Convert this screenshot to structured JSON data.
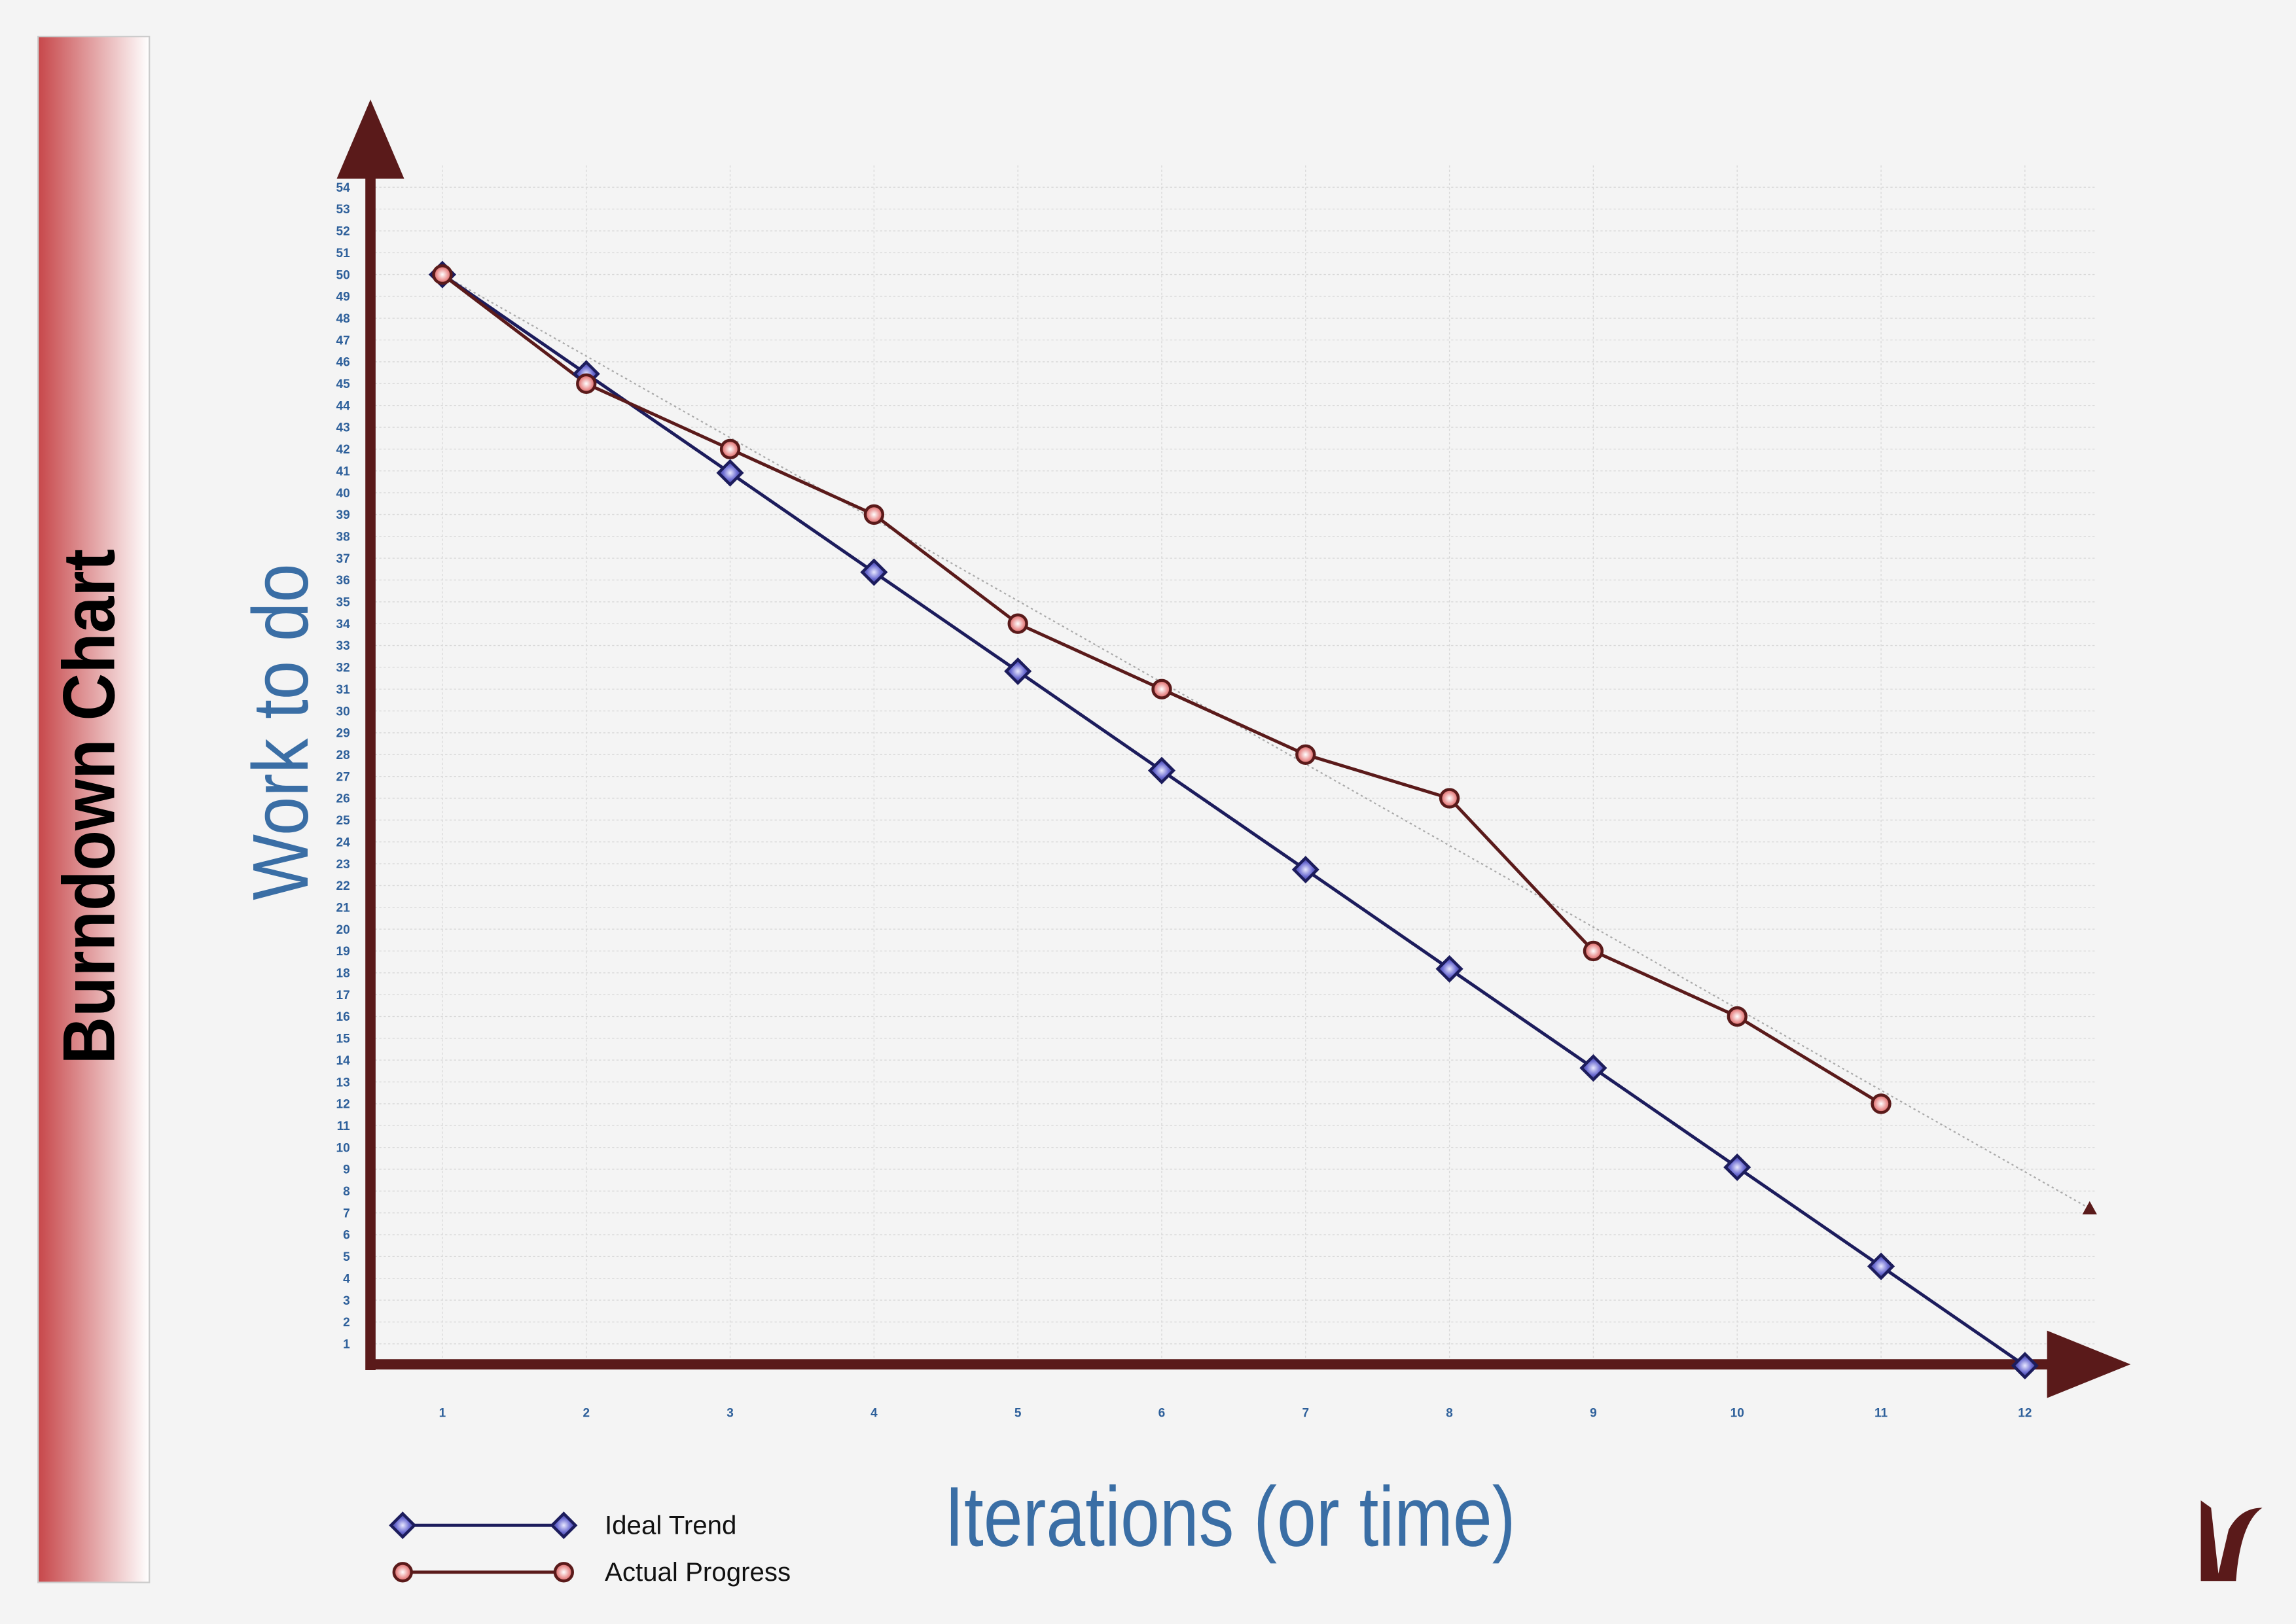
{
  "chart_data": {
    "type": "line",
    "title": "Burndown Chart",
    "ylabel": "Work to do",
    "xlabel": "Iterations (or time)",
    "x": [
      1,
      2,
      3,
      4,
      5,
      6,
      7,
      8,
      9,
      10,
      11,
      12
    ],
    "series": [
      {
        "name": "Ideal Trend",
        "color": "#1c1c5c",
        "marker": "diamond",
        "values": [
          50,
          45.45,
          40.91,
          36.36,
          31.82,
          27.27,
          22.73,
          18.18,
          13.64,
          9.09,
          4.55,
          0
        ]
      },
      {
        "name": "Actual Progress",
        "color": "#5a1a1a",
        "marker": "circle",
        "values": [
          50,
          45,
          42,
          39,
          34,
          31,
          28,
          26,
          19,
          16,
          12,
          null
        ]
      }
    ],
    "trendline": {
      "color": "#aaaaaa",
      "x": [
        1,
        12.45
      ],
      "values": [
        50,
        7.2
      ]
    },
    "xlim": [
      0.5,
      12.5
    ],
    "xticks": [
      1,
      2,
      3,
      4,
      5,
      6,
      7,
      8,
      9,
      10,
      11,
      12
    ],
    "ylim": [
      0,
      55
    ],
    "yticks": [
      1,
      2,
      3,
      4,
      5,
      6,
      7,
      8,
      9,
      10,
      11,
      12,
      13,
      14,
      15,
      16,
      17,
      18,
      19,
      20,
      21,
      22,
      23,
      24,
      25,
      26,
      27,
      28,
      29,
      30,
      31,
      32,
      33,
      34,
      35,
      36,
      37,
      38,
      39,
      40,
      41,
      42,
      43,
      44,
      45,
      46,
      47,
      48,
      49,
      50,
      51,
      52,
      53,
      54
    ],
    "grid": true
  }
}
